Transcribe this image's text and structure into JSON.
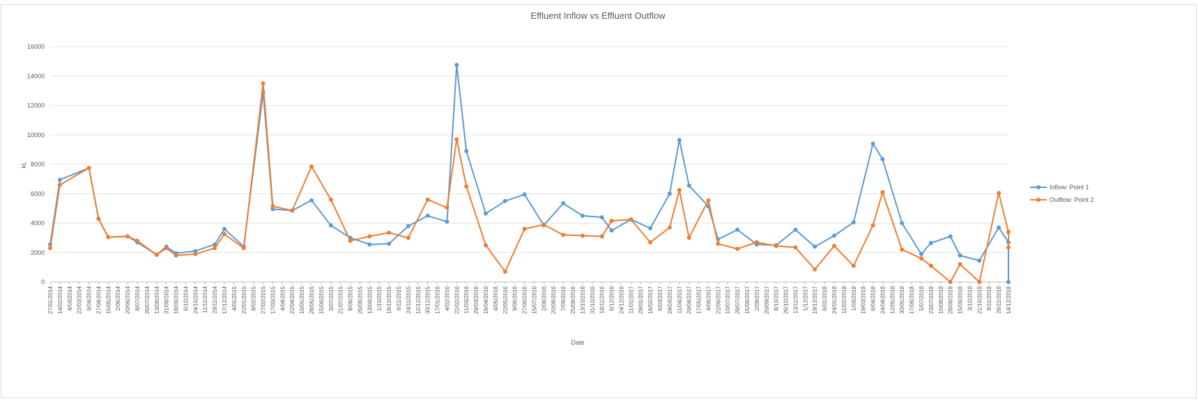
{
  "chart_data": {
    "type": "line",
    "title": "Effluent Inflow vs Effluent Outflow",
    "xlabel": "Date",
    "ylabel": "kL",
    "ylim": [
      0,
      16000
    ],
    "yticks": [
      0,
      2000,
      4000,
      6000,
      8000,
      10000,
      12000,
      14000,
      16000
    ],
    "grid": true,
    "legend_position": "right",
    "categories": [
      "27/01/2014",
      "14/02/2014",
      "4/03/2014",
      "22/03/2014",
      "9/04/2014",
      "27/04/2014",
      "15/05/2014",
      "2/06/2014",
      "20/06/2014",
      "8/07/2014",
      "26/07/2014",
      "13/08/2014",
      "31/08/2014",
      "18/09/2014",
      "6/10/2014",
      "24/10/2014",
      "11/11/2014",
      "29/11/2014",
      "17/12/2014",
      "4/01/2015",
      "22/01/2015",
      "9/02/2015",
      "27/02/2015",
      "17/03/2015",
      "4/04/2015",
      "22/04/2015",
      "10/05/2015",
      "28/05/2015",
      "15/06/2015",
      "3/07/2015",
      "21/07/2015",
      "8/08/2015",
      "26/08/2015",
      "13/09/2015",
      "1/10/2015",
      "19/10/2015",
      "6/11/2015",
      "24/11/2015",
      "12/12/2015",
      "30/12/2015",
      "17/01/2016",
      "4/02/2016",
      "22/02/2016",
      "11/03/2016",
      "29/03/2016",
      "16/04/2016",
      "4/05/2016",
      "22/05/2016",
      "9/06/2016",
      "27/06/2016",
      "15/07/2016",
      "2/08/2016",
      "20/08/2016",
      "7/09/2016",
      "25/09/2016",
      "13/10/2016",
      "31/10/2016",
      "18/11/2016",
      "6/12/2016",
      "24/12/2016",
      "11/01/2017",
      "29/01/2017",
      "16/02/2017",
      "6/03/2017",
      "24/03/2017",
      "11/04/2017",
      "29/04/2017",
      "17/05/2017",
      "4/06/2017",
      "22/06/2017",
      "10/07/2017",
      "28/07/2017",
      "15/08/2017",
      "2/09/2017",
      "20/09/2017",
      "8/10/2017",
      "26/10/2017",
      "13/11/2017",
      "1/12/2017",
      "19/12/2017",
      "6/01/2018",
      "24/01/2018",
      "11/02/2018",
      "1/03/2018",
      "19/03/2018",
      "6/04/2018",
      "24/04/2018",
      "12/05/2018",
      "30/05/2018",
      "17/06/2018",
      "5/07/2018",
      "23/07/2018",
      "10/08/2018",
      "28/08/2018",
      "15/09/2018",
      "3/10/2018",
      "21/10/2018",
      "8/11/2018",
      "26/11/2018",
      "14/12/2018"
    ],
    "series": [
      {
        "name": "Inflow: Point 1",
        "color": "#5b9bd5",
        "points": [
          [
            "27/01/2014",
            2550
          ],
          [
            "14/02/2014",
            6950
          ],
          [
            "9/04/2014",
            7750
          ],
          [
            "27/04/2014",
            4300
          ],
          [
            "15/05/2014",
            3050
          ],
          [
            "20/06/2014",
            3100
          ],
          [
            "8/07/2014",
            2700
          ],
          [
            "13/08/2014",
            1850
          ],
          [
            "31/08/2014",
            2400
          ],
          [
            "18/09/2014",
            1950
          ],
          [
            "24/10/2014",
            2100
          ],
          [
            "29/11/2014",
            2550
          ],
          [
            "17/12/2014",
            3600
          ],
          [
            "22/01/2015",
            2400
          ],
          [
            "27/02/2015",
            12900
          ],
          [
            "17/03/2015",
            4950
          ],
          [
            "22/04/2015",
            4850
          ],
          [
            "28/05/2015",
            5550
          ],
          [
            "3/07/2015",
            3850
          ],
          [
            "8/08/2015",
            3000
          ],
          [
            "13/09/2015",
            2550
          ],
          [
            "19/10/2015",
            2600
          ],
          [
            "24/11/2015",
            3800
          ],
          [
            "30/12/2015",
            4500
          ],
          [
            "4/02/2016",
            4100
          ],
          [
            "22/02/2016",
            14750
          ],
          [
            "11/03/2016",
            8900
          ],
          [
            "16/04/2016",
            4650
          ],
          [
            "22/05/2016",
            5500
          ],
          [
            "27/06/2016",
            5950
          ],
          [
            "2/08/2016",
            3850
          ],
          [
            "7/09/2016",
            5350
          ],
          [
            "13/10/2016",
            4500
          ],
          [
            "18/11/2016",
            4400
          ],
          [
            "6/12/2016",
            3500
          ],
          [
            "11/01/2017",
            4250
          ],
          [
            "16/02/2017",
            3650
          ],
          [
            "24/03/2017",
            6000
          ],
          [
            "11/04/2017",
            9650
          ],
          [
            "29/04/2017",
            6550
          ],
          [
            "4/06/2017",
            5150
          ],
          [
            "22/06/2017",
            2900
          ],
          [
            "28/07/2017",
            3550
          ],
          [
            "2/09/2017",
            2550
          ],
          [
            "8/10/2017",
            2500
          ],
          [
            "13/11/2017",
            3550
          ],
          [
            "19/12/2017",
            2400
          ],
          [
            "24/01/2018",
            3150
          ],
          [
            "1/03/2018",
            4050
          ],
          [
            "6/04/2018",
            9400
          ],
          [
            "24/04/2018",
            8350
          ],
          [
            "30/05/2018",
            4000
          ],
          [
            "5/07/2018",
            1900
          ],
          [
            "23/07/2018",
            2650
          ],
          [
            "28/08/2018",
            3100
          ],
          [
            "15/09/2018",
            1800
          ],
          [
            "21/10/2018",
            1450
          ],
          [
            "26/11/2018",
            3700
          ],
          [
            "14/12/2018",
            2700
          ],
          [
            "14/12/2018",
            0
          ]
        ]
      },
      {
        "name": "Outflow: Point 2",
        "color": "#ed7d31",
        "points": [
          [
            "27/01/2014",
            2300
          ],
          [
            "14/02/2014",
            6600
          ],
          [
            "9/04/2014",
            7750
          ],
          [
            "27/04/2014",
            4300
          ],
          [
            "15/05/2014",
            3050
          ],
          [
            "20/06/2014",
            3100
          ],
          [
            "8/07/2014",
            2800
          ],
          [
            "13/08/2014",
            1850
          ],
          [
            "31/08/2014",
            2300
          ],
          [
            "18/09/2014",
            1800
          ],
          [
            "24/10/2014",
            1900
          ],
          [
            "29/11/2014",
            2300
          ],
          [
            "17/12/2014",
            3250
          ],
          [
            "22/01/2015",
            2300
          ],
          [
            "27/02/2015",
            13500
          ],
          [
            "17/03/2015",
            5150
          ],
          [
            "22/04/2015",
            4850
          ],
          [
            "28/05/2015",
            7850
          ],
          [
            "3/07/2015",
            5600
          ],
          [
            "8/08/2015",
            2800
          ],
          [
            "13/09/2015",
            3100
          ],
          [
            "19/10/2015",
            3350
          ],
          [
            "24/11/2015",
            3000
          ],
          [
            "30/12/2015",
            5600
          ],
          [
            "4/02/2016",
            5050
          ],
          [
            "22/02/2016",
            9700
          ],
          [
            "11/03/2016",
            6500
          ],
          [
            "16/04/2016",
            2500
          ],
          [
            "22/05/2016",
            700
          ],
          [
            "27/06/2016",
            3600
          ],
          [
            "2/08/2016",
            3900
          ],
          [
            "7/09/2016",
            3200
          ],
          [
            "13/10/2016",
            3150
          ],
          [
            "18/11/2016",
            3100
          ],
          [
            "6/12/2016",
            4150
          ],
          [
            "11/01/2017",
            4250
          ],
          [
            "16/02/2017",
            2700
          ],
          [
            "24/03/2017",
            3700
          ],
          [
            "11/04/2017",
            6250
          ],
          [
            "29/04/2017",
            3000
          ],
          [
            "4/06/2017",
            5550
          ],
          [
            "22/06/2017",
            2600
          ],
          [
            "28/07/2017",
            2250
          ],
          [
            "2/09/2017",
            2700
          ],
          [
            "8/10/2017",
            2450
          ],
          [
            "13/11/2017",
            2350
          ],
          [
            "19/12/2017",
            850
          ],
          [
            "24/01/2018",
            2450
          ],
          [
            "1/03/2018",
            1100
          ],
          [
            "6/04/2018",
            3850
          ],
          [
            "24/04/2018",
            6100
          ],
          [
            "30/05/2018",
            2200
          ],
          [
            "5/07/2018",
            1600
          ],
          [
            "23/07/2018",
            1100
          ],
          [
            "28/08/2018",
            0
          ],
          [
            "15/09/2018",
            1200
          ],
          [
            "21/10/2018",
            0
          ],
          [
            "26/11/2018",
            6050
          ],
          [
            "14/12/2018",
            3400
          ],
          [
            "14/12/2018",
            2350
          ]
        ]
      }
    ]
  }
}
